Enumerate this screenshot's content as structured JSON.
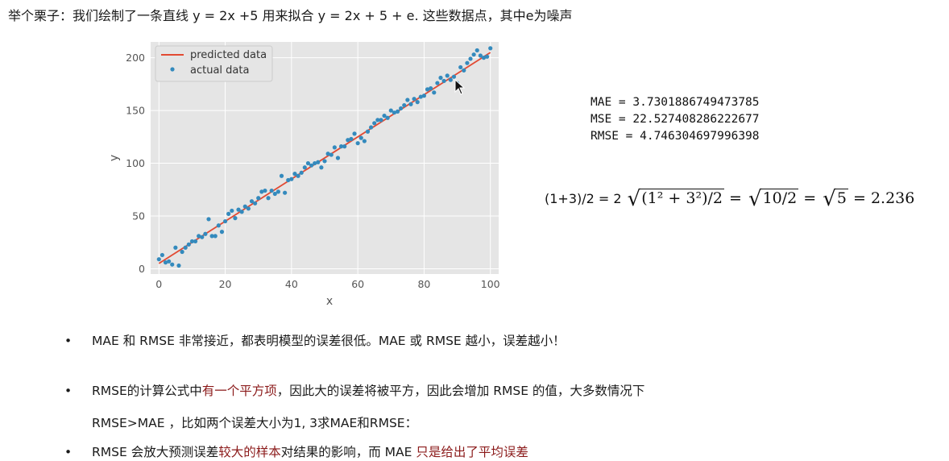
{
  "heading": "举个栗子：我们绘制了一条直线 y = 2x +5 用来拟合 y = 2x + 5 + e. 这些数据点，其中e为噪声",
  "metrics": {
    "mae": "MAE = 3.7301886749473785",
    "mse": "MSE = 22.527408286222677",
    "rmse": "RMSE = 4.746304697996398"
  },
  "formula": {
    "prefix": "(1+3)/2 = 2",
    "root1": "(1² + 3²)/2",
    "eq1": "=",
    "root2": "10/2",
    "eq2": "=",
    "root3": "5",
    "eq3": "= 2.236"
  },
  "bullets": {
    "b1": "MAE 和 RMSE 非常接近，都表明模型的误差很低。MAE 或 RMSE 越小，误差越小！",
    "b2_a": "RMSE的计算公式中",
    "b2_hl": "有一个平方项",
    "b2_b": "，因此大的误差将被平方，因此会增加 RMSE 的值，大多数情况下",
    "b2_line2": "RMSE>MAE ，比如两个误差大小为1, 3求MAE和RMSE：",
    "b3_a": "RMSE 会放大预测误差",
    "b3_hl1": "较大的样本",
    "b3_b": "对结果的影响，而 MAE ",
    "b3_hl2": "只是给出了平均误差"
  },
  "colors": {
    "line": "#e24a33",
    "points": "#348abd",
    "plot_bg": "#e5e5e5",
    "highlight": "#8b1a1a"
  },
  "chart_data": {
    "type": "scatter",
    "xlabel": "x",
    "ylabel": "y",
    "xlim": [
      -2.5,
      102.5
    ],
    "ylim": [
      -5,
      215
    ],
    "xticks": [
      0,
      20,
      40,
      60,
      80,
      100
    ],
    "yticks": [
      0,
      50,
      100,
      150,
      200
    ],
    "grid": true,
    "legend_position": "top-left",
    "series": [
      {
        "name": "predicted data",
        "kind": "line",
        "x": [
          0,
          100
        ],
        "y": [
          5,
          205
        ]
      },
      {
        "name": "actual data",
        "kind": "points",
        "x": [
          0,
          1,
          2,
          3,
          4,
          5,
          6,
          7,
          8,
          9,
          10,
          11,
          12,
          13,
          14,
          15,
          16,
          17,
          18,
          19,
          20,
          21,
          22,
          23,
          24,
          25,
          26,
          27,
          28,
          29,
          30,
          31,
          32,
          33,
          34,
          35,
          36,
          37,
          38,
          39,
          40,
          41,
          42,
          43,
          44,
          45,
          46,
          47,
          48,
          49,
          50,
          51,
          52,
          53,
          54,
          55,
          56,
          57,
          58,
          59,
          60,
          61,
          62,
          63,
          64,
          65,
          66,
          67,
          68,
          69,
          70,
          71,
          72,
          73,
          74,
          75,
          76,
          77,
          78,
          79,
          80,
          81,
          82,
          83,
          84,
          85,
          86,
          87,
          88,
          89,
          90,
          91,
          92,
          93,
          94,
          95,
          96,
          97,
          98,
          99,
          100
        ],
        "y": [
          9,
          13,
          6,
          7,
          4,
          20,
          3,
          16,
          20,
          23,
          26,
          26,
          31,
          30,
          33,
          47,
          31,
          31,
          41,
          35,
          45,
          52,
          55,
          48,
          56,
          54,
          59,
          57,
          64,
          62,
          67,
          73,
          74,
          67,
          74,
          71,
          73,
          88,
          72,
          84,
          85,
          90,
          88,
          91,
          96,
          100,
          98,
          100,
          101,
          96,
          102,
          109,
          108,
          115,
          105,
          116,
          116,
          122,
          123,
          128,
          119,
          124,
          121,
          130,
          134,
          138,
          141,
          141,
          145,
          143,
          150,
          148,
          149,
          152,
          155,
          160,
          156,
          161,
          158,
          163,
          164,
          170,
          171,
          167,
          176,
          181,
          178,
          183,
          179,
          182,
          176,
          191,
          188,
          195,
          199,
          203,
          207,
          202,
          200,
          201,
          209
        ]
      }
    ]
  }
}
